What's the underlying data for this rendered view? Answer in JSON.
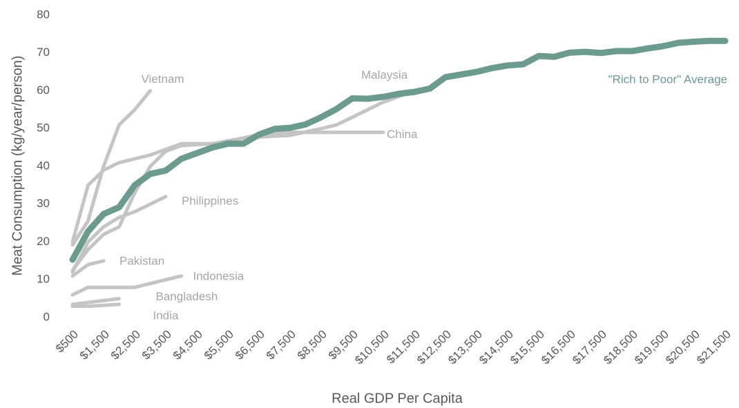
{
  "chart_data": {
    "type": "line",
    "x_label": "Real GDP Per Capita",
    "y_label": "Meat Consumption (kg/year/person)",
    "xlim": [
      500,
      21500
    ],
    "ylim": [
      0,
      80
    ],
    "yticks": [
      0,
      10,
      20,
      30,
      40,
      50,
      60,
      70,
      80
    ],
    "xticks": [
      {
        "value": 500,
        "label": "$500"
      },
      {
        "value": 1500,
        "label": "$1,500"
      },
      {
        "value": 2500,
        "label": "$2,500"
      },
      {
        "value": 3500,
        "label": "$3,500"
      },
      {
        "value": 4500,
        "label": "$4,500"
      },
      {
        "value": 5500,
        "label": "$5,500"
      },
      {
        "value": 6500,
        "label": "$6,500"
      },
      {
        "value": 7500,
        "label": "$7,500"
      },
      {
        "value": 8500,
        "label": "$8,500"
      },
      {
        "value": 9500,
        "label": "$9,500"
      },
      {
        "value": 10500,
        "label": "$10,500"
      },
      {
        "value": 11500,
        "label": "$11,500"
      },
      {
        "value": 12500,
        "label": "$12,500"
      },
      {
        "value": 13500,
        "label": "$13,500"
      },
      {
        "value": 14500,
        "label": "$14,500"
      },
      {
        "value": 15500,
        "label": "$15,500"
      },
      {
        "value": 16500,
        "label": "$16,500"
      },
      {
        "value": 17500,
        "label": "$17,500"
      },
      {
        "value": 18500,
        "label": "$18,500"
      },
      {
        "value": 19500,
        "label": "$19,500"
      },
      {
        "value": 20500,
        "label": "$20,500"
      },
      {
        "value": 21500,
        "label": "$21,500"
      }
    ],
    "series": [
      {
        "name": "Vietnam",
        "color": "#c4c4c4",
        "x": [
          500,
          1000,
          1500,
          2000,
          2500,
          3000
        ],
        "values": [
          19.2,
          25.6,
          40,
          51,
          55,
          60
        ]
      },
      {
        "name": "Malaysia",
        "color": "#c4c4c4",
        "x": [
          500,
          1000,
          1500,
          2000,
          2500,
          3000,
          3500,
          4000,
          5000,
          6000,
          7000,
          7500,
          8500,
          9000,
          10500,
          11500
        ],
        "values": [
          12.5,
          18,
          22,
          24,
          33,
          40,
          44,
          45.5,
          46,
          47.5,
          48,
          48.2,
          50,
          51,
          57,
          60
        ]
      },
      {
        "name": "China",
        "color": "#c4c4c4",
        "x": [
          500,
          1000,
          1500,
          2000,
          2500,
          3000,
          3500,
          4000,
          5000,
          6000,
          6500,
          7500,
          10500
        ],
        "values": [
          20,
          35,
          39,
          41,
          42,
          43,
          44.5,
          46,
          46,
          47.5,
          48.5,
          49,
          49
        ]
      },
      {
        "name": "Philippines",
        "color": "#c4c4c4",
        "x": [
          500,
          1000,
          1500,
          2000,
          2500,
          3500
        ],
        "values": [
          12,
          20,
          24,
          26.5,
          28,
          32
        ]
      },
      {
        "name": "Pakistan",
        "color": "#c4c4c4",
        "x": [
          500,
          1000,
          1500
        ],
        "values": [
          11,
          14,
          15
        ]
      },
      {
        "name": "Indonesia",
        "color": "#c4c4c4",
        "x": [
          500,
          1000,
          2500,
          4000
        ],
        "values": [
          6,
          8,
          8,
          11
        ]
      },
      {
        "name": "Bangladesh",
        "color": "#c4c4c4",
        "x": [
          500,
          1000,
          2000
        ],
        "values": [
          3.5,
          4,
          5
        ]
      },
      {
        "name": "India",
        "color": "#c4c4c4",
        "x": [
          500,
          1000,
          2000
        ],
        "values": [
          3,
          3,
          3.5
        ]
      },
      {
        "name": "\"Rich to Poor\" Average",
        "color": "#6b9a8e",
        "x": [
          500,
          1000,
          1500,
          2000,
          2500,
          3000,
          3500,
          4000,
          4500,
          5000,
          5500,
          6000,
          6500,
          7000,
          7500,
          8000,
          8500,
          9000,
          9500,
          10000,
          10500,
          11000,
          11500,
          12000,
          12500,
          13000,
          13500,
          14000,
          14500,
          15000,
          15500,
          16000,
          16500,
          17000,
          17500,
          18000,
          18500,
          19000,
          19500,
          20000,
          20500,
          21000,
          21500
        ],
        "values": [
          15.3,
          22.8,
          27.4,
          29.2,
          35,
          38,
          38.9,
          42,
          43.5,
          45,
          46,
          46,
          48.4,
          49.9,
          50.2,
          51.1,
          53,
          55.2,
          58,
          57.9,
          58.4,
          59.2,
          59.7,
          60.6,
          63.6,
          64.3,
          65,
          66,
          66.7,
          67,
          69.2,
          69,
          70.1,
          70.3,
          70,
          70.5,
          70.5,
          71.2,
          71.8,
          72.7,
          73,
          73.2,
          73.2
        ]
      }
    ]
  }
}
